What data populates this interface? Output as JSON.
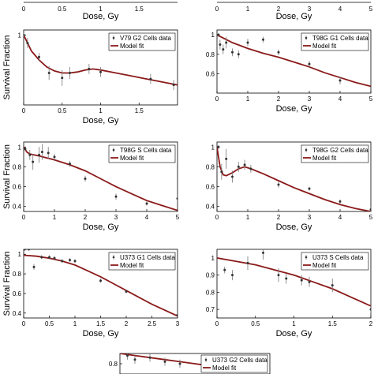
{
  "figure": {
    "panels": [
      {
        "id": "top-left-strip",
        "xticks": [
          "0",
          "0.5",
          "1",
          "1.5"
        ],
        "xlabel": "Dose, Gy"
      },
      {
        "id": "top-right-strip",
        "xticks": [
          "0",
          "1",
          "2",
          "3",
          "4",
          "5"
        ],
        "xlabel": "Dose, Gy"
      }
    ]
  },
  "chart_data": [
    {
      "type": "scatter",
      "ylabel": "Survival Fraction",
      "xlabel": "Dose, Gy",
      "xlim": [
        0,
        2
      ],
      "ylim": [
        0.3,
        1.05
      ],
      "xticks": [
        "0",
        "0.5",
        "1",
        "1.5"
      ],
      "yticks": [
        "1"
      ],
      "legend": [
        "V79 G2 Cells data",
        "Model fit"
      ],
      "series": [
        {
          "name": "V79 G2 Cells data",
          "x": [
            0.0,
            0.05,
            0.2,
            0.33,
            0.5,
            0.6,
            0.85,
            1.0,
            1.65,
            1.95
          ],
          "y": [
            1.0,
            0.92,
            0.78,
            0.62,
            0.57,
            0.62,
            0.66,
            0.63,
            0.56,
            0.5
          ],
          "err": [
            0.02,
            0.05,
            0.04,
            0.07,
            0.08,
            0.06,
            0.05,
            0.05,
            0.05,
            0.05
          ]
        },
        {
          "name": "Model fit",
          "x": [
            0,
            0.1,
            0.2,
            0.3,
            0.4,
            0.5,
            0.6,
            0.7,
            0.8,
            0.9,
            1.0,
            1.2,
            1.4,
            1.6,
            1.8,
            2.0
          ],
          "y": [
            1.0,
            0.84,
            0.75,
            0.68,
            0.64,
            0.62,
            0.62,
            0.63,
            0.65,
            0.66,
            0.65,
            0.62,
            0.59,
            0.56,
            0.53,
            0.5
          ]
        }
      ]
    },
    {
      "type": "scatter",
      "ylabel": "",
      "xlabel": "Dose, Gy",
      "xlim": [
        0,
        5
      ],
      "ylim": [
        0.4,
        1.05
      ],
      "xticks": [
        "0",
        "1",
        "2",
        "3",
        "4",
        "5"
      ],
      "yticks": [
        "0.6",
        "0.8",
        "1"
      ],
      "legend": [
        "T98G G1 Cells data",
        "Model fit"
      ],
      "series": [
        {
          "name": "T98G G1 Cells data",
          "x": [
            0.05,
            0.1,
            0.2,
            0.3,
            0.5,
            0.7,
            1.0,
            1.5,
            2.0,
            3.0,
            4.0
          ],
          "y": [
            1.0,
            0.9,
            0.85,
            0.92,
            0.82,
            0.8,
            0.92,
            0.95,
            0.82,
            0.7,
            0.53
          ],
          "err": [
            0.02,
            0.05,
            0.05,
            0.06,
            0.04,
            0.04,
            0.04,
            0.03,
            0.03,
            0.03,
            0.04
          ]
        },
        {
          "name": "Model fit",
          "x": [
            0,
            0.5,
            1,
            1.5,
            2,
            2.5,
            3,
            3.5,
            4,
            4.5,
            5
          ],
          "y": [
            1.0,
            0.92,
            0.86,
            0.81,
            0.77,
            0.72,
            0.67,
            0.61,
            0.56,
            0.51,
            0.47
          ]
        }
      ]
    },
    {
      "type": "scatter",
      "ylabel": "Survival Fraction",
      "xlabel": "Dose, Gy",
      "xlim": [
        0,
        5
      ],
      "ylim": [
        0.35,
        1.05
      ],
      "xticks": [
        "0",
        "1",
        "2",
        "3",
        "4",
        "5"
      ],
      "yticks": [
        "0.4",
        "0.6",
        "0.8",
        "1"
      ],
      "legend": [
        "T98G S Cells data",
        "Model fit"
      ],
      "series": [
        {
          "name": "T98G S Cells data",
          "x": [
            0.05,
            0.2,
            0.3,
            0.5,
            0.6,
            0.8,
            1.0,
            1.5,
            2.0,
            3.0,
            4.0,
            5.0
          ],
          "y": [
            0.98,
            0.92,
            0.85,
            0.92,
            0.95,
            0.94,
            0.9,
            0.83,
            0.68,
            0.5,
            0.43,
            0.48
          ],
          "err": [
            0.02,
            0.05,
            0.08,
            0.08,
            0.08,
            0.06,
            0.03,
            0.03,
            0.03,
            0.03,
            0.02,
            0.02
          ]
        },
        {
          "name": "Model fit",
          "x": [
            0,
            0.1,
            0.2,
            0.5,
            1,
            1.5,
            2,
            2.5,
            3,
            3.5,
            4,
            4.5,
            5
          ],
          "y": [
            1.0,
            0.95,
            0.93,
            0.91,
            0.87,
            0.82,
            0.76,
            0.68,
            0.6,
            0.53,
            0.46,
            0.41,
            0.36
          ]
        }
      ]
    },
    {
      "type": "scatter",
      "ylabel": "",
      "xlabel": "Dose, Gy",
      "xlim": [
        0,
        5
      ],
      "ylim": [
        0.35,
        1.05
      ],
      "xticks": [
        "0",
        "1",
        "2",
        "3",
        "4",
        "5"
      ],
      "yticks": [
        "0.4",
        "0.6",
        "0.8",
        "1"
      ],
      "legend": [
        "T98G G2 Cells data",
        "Model fit"
      ],
      "series": [
        {
          "name": "T98G G2 Cells data",
          "x": [
            0.05,
            0.15,
            0.3,
            0.5,
            0.7,
            0.9,
            1.1,
            2.0,
            3.0,
            4.0,
            5.0
          ],
          "y": [
            1.0,
            0.75,
            0.88,
            0.7,
            0.8,
            0.82,
            0.78,
            0.62,
            0.58,
            0.45,
            0.37
          ],
          "err": [
            0.02,
            0.08,
            0.1,
            0.06,
            0.05,
            0.05,
            0.04,
            0.03,
            0.02,
            0.02,
            0.02
          ]
        },
        {
          "name": "Model fit",
          "x": [
            0,
            0.1,
            0.2,
            0.3,
            0.5,
            0.7,
            0.9,
            1.1,
            1.5,
            2,
            2.5,
            3,
            3.5,
            4,
            4.5,
            5
          ],
          "y": [
            1.0,
            0.8,
            0.72,
            0.71,
            0.74,
            0.78,
            0.8,
            0.78,
            0.73,
            0.66,
            0.59,
            0.53,
            0.47,
            0.42,
            0.38,
            0.35
          ]
        }
      ]
    },
    {
      "type": "scatter",
      "ylabel": "Survival Fraction",
      "xlabel": "Dose, Gy",
      "xlim": [
        0,
        3
      ],
      "ylim": [
        0.35,
        1.05
      ],
      "xticks": [
        "0",
        "0.5",
        "1",
        "1.5",
        "2",
        "2.5",
        "3"
      ],
      "yticks": [
        "0.4",
        "0.6",
        "0.8",
        "1"
      ],
      "legend": [
        "U373 G1 Cells data",
        "Model fit"
      ],
      "series": [
        {
          "name": "U373 G1 Cells data",
          "x": [
            0.02,
            0.1,
            0.2,
            0.35,
            0.5,
            0.6,
            0.75,
            0.9,
            1.0,
            1.5,
            2.0,
            3.0
          ],
          "y": [
            1.05,
            1.05,
            0.87,
            0.97,
            0.97,
            0.96,
            0.93,
            0.94,
            0.93,
            0.73,
            0.62,
            0.38
          ],
          "err": [
            0.01,
            0.01,
            0.03,
            0.02,
            0.02,
            0.02,
            0.02,
            0.02,
            0.02,
            0.02,
            0.02,
            0.02
          ]
        },
        {
          "name": "Model fit",
          "x": [
            0,
            0.25,
            0.5,
            0.75,
            1.0,
            1.25,
            1.5,
            1.75,
            2.0,
            2.25,
            2.5,
            2.75,
            3.0
          ],
          "y": [
            0.99,
            0.98,
            0.96,
            0.93,
            0.89,
            0.83,
            0.77,
            0.7,
            0.63,
            0.56,
            0.49,
            0.43,
            0.37
          ]
        }
      ]
    },
    {
      "type": "scatter",
      "ylabel": "",
      "xlabel": "Dose, Gy",
      "xlim": [
        0,
        2
      ],
      "ylim": [
        0.65,
        1.05
      ],
      "xticks": [
        "0",
        "0.5",
        "1",
        "1.5",
        "2"
      ],
      "yticks": [
        "0.7",
        "0.8",
        "0.9",
        "1"
      ],
      "legend": [
        "U373 S Cells data",
        "Model fit"
      ],
      "series": [
        {
          "name": "U373 S Cells data",
          "x": [
            0.1,
            0.2,
            0.4,
            0.6,
            0.8,
            0.9,
            1.1,
            1.2,
            1.5,
            2.0
          ],
          "y": [
            0.93,
            0.9,
            0.97,
            1.03,
            0.9,
            0.88,
            0.87,
            0.86,
            0.84,
            0.7
          ],
          "err": [
            0.02,
            0.03,
            0.04,
            0.04,
            0.04,
            0.03,
            0.03,
            0.03,
            0.04,
            0.02
          ]
        },
        {
          "name": "Model fit",
          "x": [
            0,
            0.25,
            0.5,
            0.75,
            1.0,
            1.25,
            1.5,
            1.75,
            2.0
          ],
          "y": [
            1.0,
            0.98,
            0.96,
            0.93,
            0.9,
            0.86,
            0.82,
            0.77,
            0.72
          ]
        }
      ]
    },
    {
      "type": "scatter",
      "ylabel": "",
      "xlabel": "",
      "xlim": [
        0,
        2
      ],
      "ylim": [
        0.75,
        0.85
      ],
      "xticks": [],
      "yticks": [
        "0.8"
      ],
      "legend": [
        "U373 G2 Cells data",
        "Model fit"
      ],
      "series": [
        {
          "name": "U373 G2 Cells data",
          "x": [
            0.1,
            0.2,
            0.4,
            0.6,
            0.8
          ],
          "y": [
            0.84,
            0.82,
            0.83,
            0.81,
            0.8
          ],
          "err": [
            0.02,
            0.02,
            0.02,
            0.02,
            0.02
          ]
        },
        {
          "name": "Model fit",
          "x": [
            0,
            0.2,
            0.4,
            0.6,
            0.8,
            1.0,
            1.2
          ],
          "y": [
            0.85,
            0.84,
            0.83,
            0.82,
            0.81,
            0.8,
            0.79
          ]
        }
      ]
    }
  ],
  "colors": {
    "fit": "#8b1a1a",
    "data": "#333333",
    "axis": "#000000"
  }
}
